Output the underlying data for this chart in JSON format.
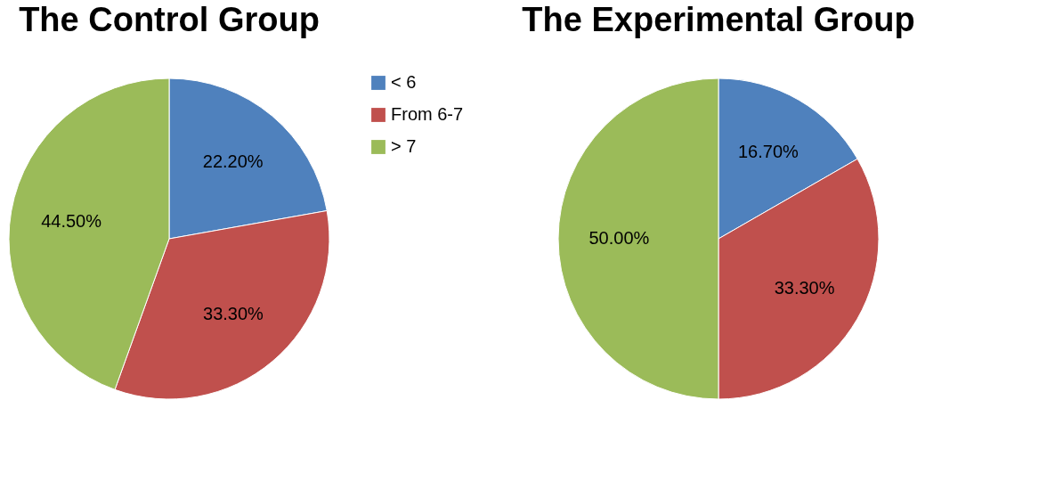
{
  "chart_data": [
    {
      "type": "pie",
      "title": "The Control Group",
      "categories": [
        "< 6",
        "From 6-7",
        "> 7"
      ],
      "values": [
        22.2,
        33.3,
        44.5
      ],
      "colors": [
        "#4f81bd",
        "#c0504d",
        "#9bbb59"
      ],
      "value_labels": [
        "22.20%",
        "33.30%",
        "44.50%"
      ],
      "legend": "right"
    },
    {
      "type": "pie",
      "title": "The Experimental  Group",
      "categories": [
        null,
        null,
        null
      ],
      "values": [
        16.7,
        33.3,
        50.0
      ],
      "colors": [
        "#4f81bd",
        "#c0504d",
        "#9bbb59"
      ],
      "value_labels": [
        "16.70%",
        "33.30%",
        "50.00%"
      ],
      "legend": false
    }
  ]
}
